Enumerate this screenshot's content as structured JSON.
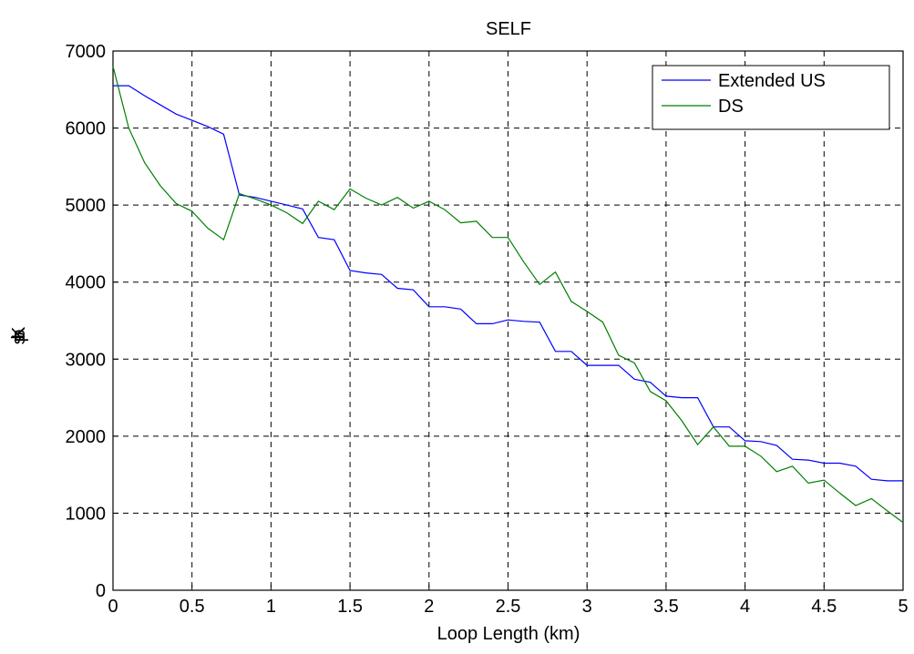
{
  "chart_data": {
    "type": "line",
    "title": "SELF",
    "xlabel": "Loop Length (km)",
    "ylabel": "Kbps",
    "xlim": [
      0,
      5
    ],
    "ylim": [
      0,
      7000
    ],
    "xticks": [
      "0",
      "0.5",
      "1",
      "1.5",
      "2",
      "2.5",
      "3",
      "3.5",
      "4",
      "4.5",
      "5"
    ],
    "yticks": [
      "0",
      "1000",
      "2000",
      "3000",
      "4000",
      "5000",
      "6000",
      "7000"
    ],
    "grid": true,
    "legend_position": "top-right",
    "series": [
      {
        "name": "Extended US",
        "color": "#0000ff",
        "x": [
          0,
          0.1,
          0.2,
          0.3,
          0.4,
          0.5,
          0.6,
          0.7,
          0.8,
          0.9,
          1.0,
          1.1,
          1.2,
          1.3,
          1.4,
          1.5,
          1.6,
          1.7,
          1.8,
          1.9,
          2.0,
          2.1,
          2.2,
          2.3,
          2.4,
          2.5,
          2.6,
          2.7,
          2.8,
          2.9,
          3.0,
          3.1,
          3.2,
          3.3,
          3.4,
          3.5,
          3.6,
          3.7,
          3.8,
          3.9,
          4.0,
          4.1,
          4.2,
          4.3,
          4.4,
          4.5,
          4.6,
          4.7,
          4.8,
          4.9,
          5.0
        ],
        "y": [
          6550,
          6550,
          6420,
          6300,
          6180,
          6100,
          6020,
          5920,
          5130,
          5100,
          5050,
          5000,
          4950,
          4580,
          4550,
          4150,
          4120,
          4100,
          3920,
          3900,
          3680,
          3680,
          3650,
          3460,
          3460,
          3510,
          3490,
          3480,
          3100,
          3100,
          2920,
          2920,
          2920,
          2740,
          2700,
          2520,
          2500,
          2500,
          2120,
          2120,
          1940,
          1930,
          1880,
          1700,
          1690,
          1650,
          1650,
          1610,
          1440,
          1420,
          1420
        ]
      },
      {
        "name": "DS",
        "color": "#007f00",
        "x": [
          0,
          0.1,
          0.2,
          0.3,
          0.4,
          0.5,
          0.6,
          0.7,
          0.8,
          0.9,
          1.0,
          1.1,
          1.2,
          1.3,
          1.4,
          1.5,
          1.6,
          1.7,
          1.8,
          1.9,
          2.0,
          2.1,
          2.2,
          2.3,
          2.4,
          2.5,
          2.6,
          2.7,
          2.8,
          2.9,
          3.0,
          3.1,
          3.2,
          3.3,
          3.4,
          3.5,
          3.6,
          3.7,
          3.8,
          3.9,
          4.0,
          4.1,
          4.2,
          4.3,
          4.4,
          4.5,
          4.6,
          4.7,
          4.8,
          4.9,
          5.0
        ],
        "y": [
          6800,
          6000,
          5550,
          5250,
          5020,
          4920,
          4700,
          4550,
          5150,
          5080,
          5000,
          4900,
          4760,
          5050,
          4940,
          5210,
          5090,
          5000,
          5100,
          4960,
          5050,
          4940,
          4770,
          4790,
          4580,
          4580,
          4260,
          3970,
          4130,
          3750,
          3620,
          3480,
          3050,
          2950,
          2580,
          2460,
          2200,
          1890,
          2120,
          1870,
          1870,
          1740,
          1540,
          1610,
          1390,
          1430,
          1260,
          1100,
          1190,
          1030,
          880
        ]
      }
    ]
  }
}
